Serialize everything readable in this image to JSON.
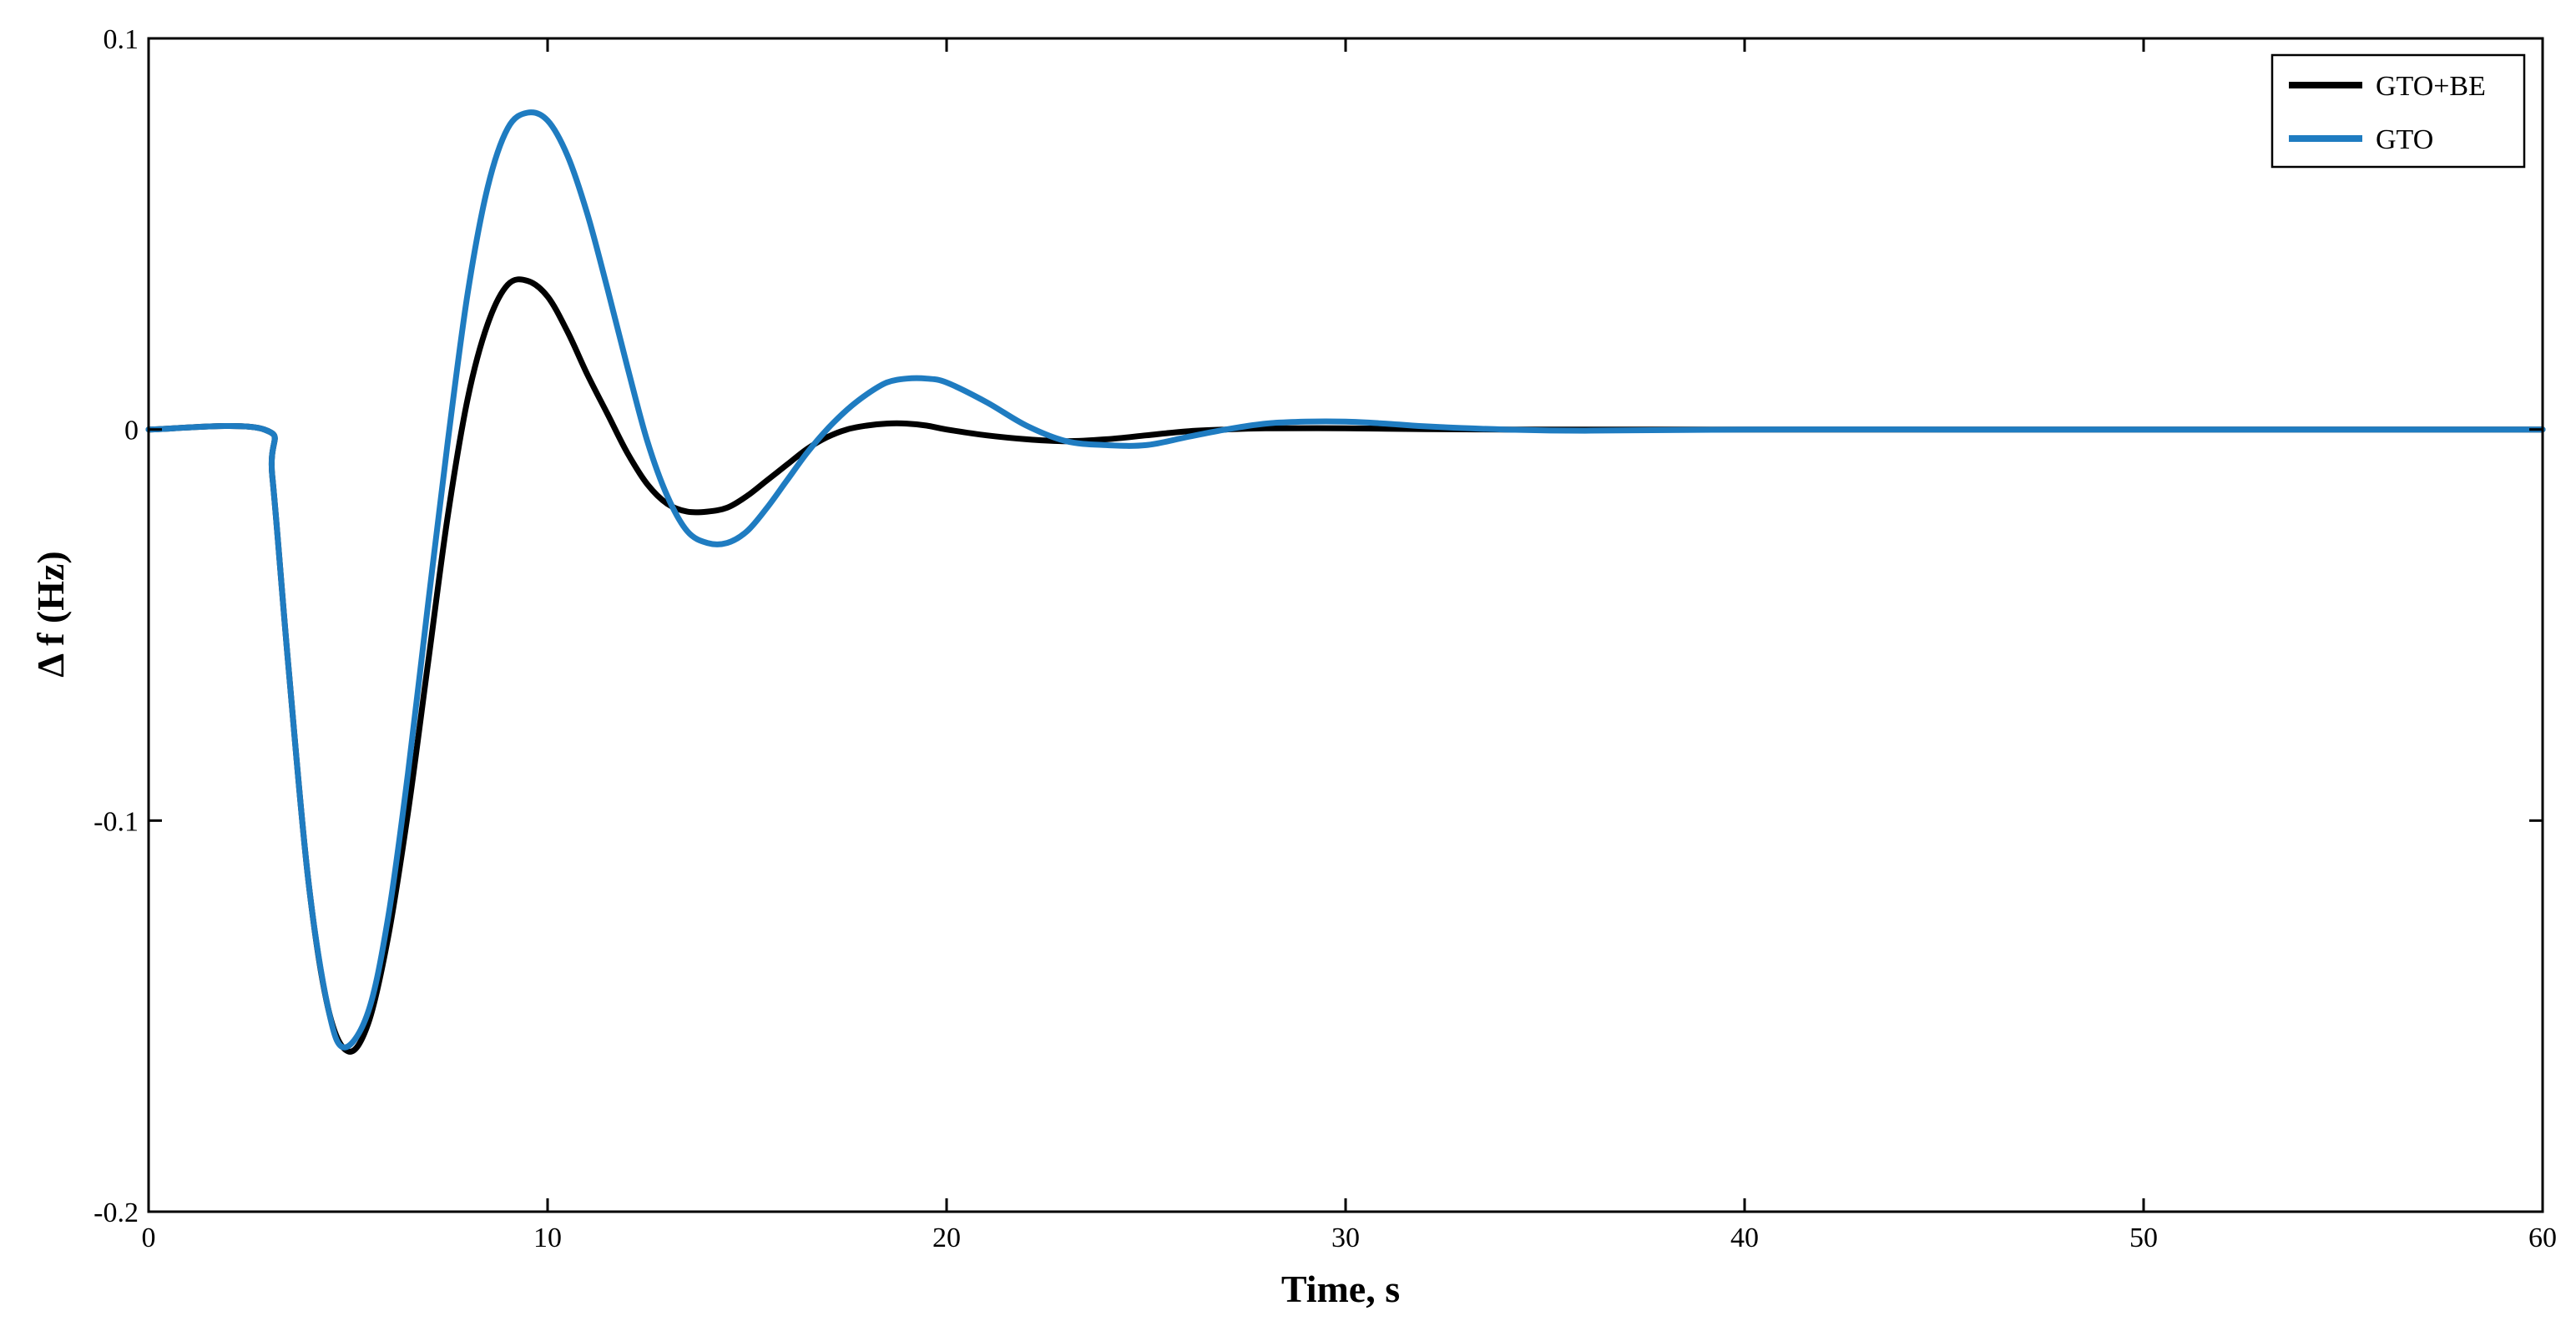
{
  "chart_data": {
    "type": "line",
    "title": "",
    "xlabel": "Time, s",
    "ylabel": "Δ f (Hz)",
    "xlim": [
      0,
      60
    ],
    "ylim": [
      -0.2,
      0.1
    ],
    "xticks": [
      0,
      10,
      20,
      30,
      40,
      50,
      60
    ],
    "yticks": [
      -0.2,
      -0.1,
      0,
      0.1
    ],
    "xtick_labels": [
      "0",
      "10",
      "20",
      "30",
      "40",
      "50",
      "60"
    ],
    "ytick_labels": [
      "-0.2",
      "-0.1",
      "0",
      "0.1"
    ],
    "grid": false,
    "legend_position": "top-right",
    "series": [
      {
        "name": "GTO+BE",
        "color": "#000000",
        "x": [
          0,
          2.9,
          3.1,
          3.5,
          4.0,
          4.5,
          5.0,
          5.5,
          6.0,
          6.5,
          7.0,
          7.5,
          8.0,
          8.5,
          9.0,
          9.5,
          10.0,
          10.5,
          11.0,
          11.5,
          12.0,
          12.5,
          13.0,
          13.5,
          14.0,
          14.5,
          15.0,
          15.5,
          16.0,
          16.5,
          17.0,
          17.5,
          18.0,
          18.5,
          19.0,
          19.5,
          20.0,
          21.0,
          22.0,
          23.0,
          24.0,
          25.0,
          26.0,
          27.0,
          28.0,
          30.0,
          32.0,
          34.0,
          36.0,
          40.0,
          45.0,
          50.0,
          55.0,
          60.0
        ],
        "y": [
          0,
          0,
          -0.012,
          -0.06,
          -0.115,
          -0.148,
          -0.159,
          -0.152,
          -0.13,
          -0.098,
          -0.06,
          -0.022,
          0.008,
          0.027,
          0.037,
          0.038,
          0.034,
          0.025,
          0.014,
          0.004,
          -0.006,
          -0.014,
          -0.019,
          -0.021,
          -0.021,
          -0.02,
          -0.017,
          -0.013,
          -0.009,
          -0.005,
          -0.002,
          0.0,
          0.001,
          0.0015,
          0.0015,
          0.001,
          0.0,
          -0.0015,
          -0.0025,
          -0.003,
          -0.0025,
          -0.0015,
          -0.0005,
          0.0,
          0.0003,
          0.0003,
          0.0001,
          0.0,
          0.0,
          0.0,
          0.0,
          0.0,
          0.0,
          0.0
        ]
      },
      {
        "name": "GTO",
        "color": "#1f7cc1",
        "x": [
          0,
          2.9,
          3.1,
          3.5,
          4.0,
          4.5,
          4.9,
          5.5,
          6.0,
          6.5,
          7.0,
          7.5,
          8.0,
          8.5,
          9.0,
          9.5,
          10.0,
          10.5,
          11.0,
          11.5,
          12.0,
          12.5,
          13.0,
          13.5,
          14.0,
          14.5,
          15.0,
          15.5,
          16.0,
          16.5,
          17.0,
          17.5,
          18.0,
          18.5,
          19.0,
          19.5,
          20.0,
          21.0,
          22.0,
          23.0,
          24.0,
          25.0,
          26.0,
          27.0,
          28.0,
          29.0,
          30.0,
          31.0,
          32.0,
          34.0,
          36.0,
          40.0,
          45.0,
          50.0,
          55.0,
          60.0
        ],
        "y": [
          0,
          0,
          -0.012,
          -0.06,
          -0.115,
          -0.148,
          -0.158,
          -0.149,
          -0.125,
          -0.088,
          -0.045,
          -0.003,
          0.035,
          0.062,
          0.077,
          0.081,
          0.079,
          0.07,
          0.055,
          0.036,
          0.016,
          -0.003,
          -0.017,
          -0.026,
          -0.029,
          -0.029,
          -0.026,
          -0.02,
          -0.013,
          -0.006,
          0.0,
          0.005,
          0.009,
          0.012,
          0.013,
          0.013,
          0.012,
          0.007,
          0.001,
          -0.003,
          -0.004,
          -0.004,
          -0.002,
          0.0,
          0.0015,
          0.002,
          0.002,
          0.0015,
          0.0008,
          0.0,
          -0.0003,
          0.0,
          0.0,
          0.0,
          0.0,
          0.0
        ]
      }
    ]
  }
}
